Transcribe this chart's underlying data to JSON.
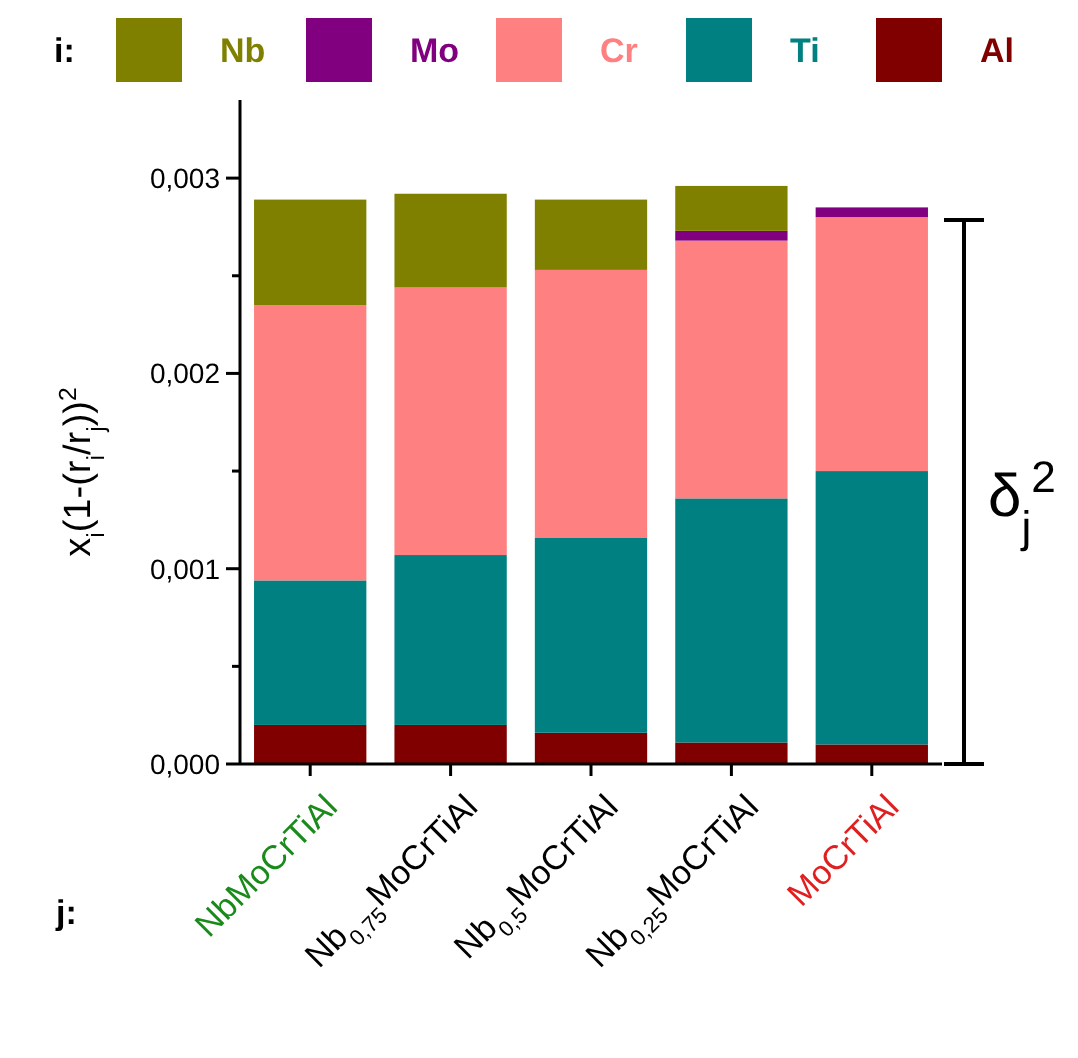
{
  "chart_data": {
    "type": "bar",
    "stacked": true,
    "legend_title": "i:",
    "xlabel": "j:",
    "ylabel": "x$_{i}$(1-(r$_{i}$/r$_{j}$))$^{2}$",
    "categories": [
      "NbMoCrTiAl",
      "Nb$_{0,75}$MoCrTiAl",
      "Nb$_{0,5}$MoCrTiAl",
      "Nb$_{0,25}$MoCrTiAl",
      "MoCrTiAl"
    ],
    "series": [
      {
        "name": "Al",
        "color": "#800000",
        "values": [
          0.0002,
          0.0002,
          0.00016,
          0.00011,
          0.0001
        ]
      },
      {
        "name": "Ti",
        "color": "#008080",
        "values": [
          0.00074,
          0.00087,
          0.001,
          0.00125,
          0.0014
        ]
      },
      {
        "name": "Cr",
        "color": "#ff8080",
        "values": [
          0.00141,
          0.00137,
          0.00137,
          0.00132,
          0.0013
        ]
      },
      {
        "name": "Mo",
        "color": "#800080",
        "values": [
          0,
          0,
          0,
          5e-05,
          5e-05
        ]
      },
      {
        "name": "Nb",
        "color": "#808000",
        "values": [
          0.00054,
          0.00048,
          0.00036,
          0.00023,
          0
        ]
      }
    ],
    "ylim": [
      0,
      0.0034
    ],
    "yticks": [
      {
        "value": 0,
        "label": "0,000"
      },
      {
        "value": 0.0005,
        "label": null
      },
      {
        "value": 0.001,
        "label": "0,001"
      },
      {
        "value": 0.0015,
        "label": null
      },
      {
        "value": 0.002,
        "label": "0,002"
      },
      {
        "value": 0.0025,
        "label": null
      },
      {
        "value": 0.003,
        "label": "0,003"
      }
    ],
    "legend": "top",
    "grid": false,
    "annotations": [
      "δ$_{j}$$^{2}$"
    ]
  }
}
